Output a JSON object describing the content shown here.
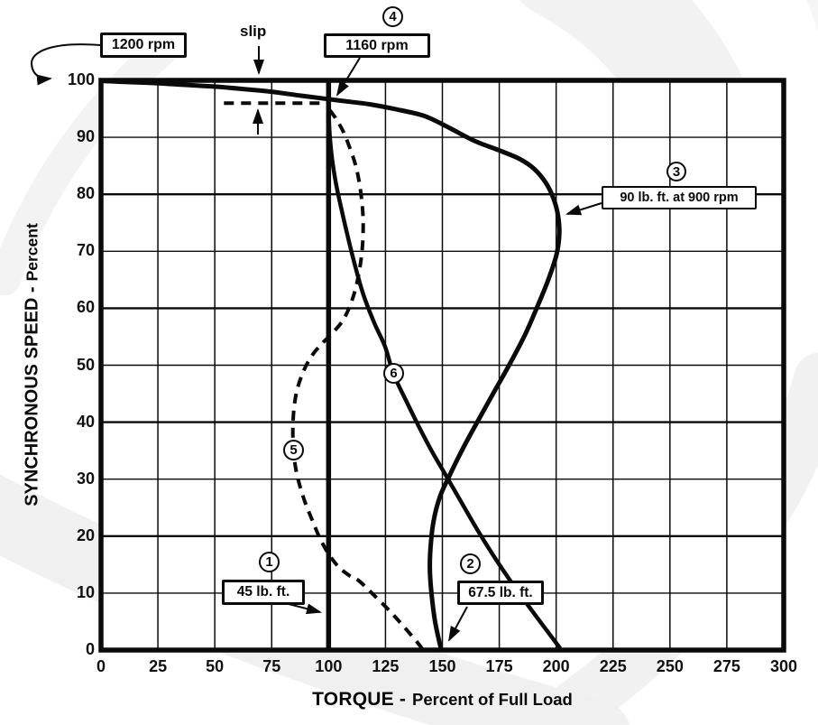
{
  "labels": {
    "x_title_main": "TORQUE -",
    "x_title_sub": "Percent of Full Load",
    "y_title_main": "SYNCHRONOUS SPEED -",
    "y_title_sub": "Percent",
    "slip": "slip",
    "rpm_1200": "1200 rpm",
    "rpm_1160": "1160 rpm",
    "breakdown": "90 lb. ft. at 900 rpm",
    "full_load": "45 lb. ft.",
    "starting": "67.5 lb. ft.",
    "n1": "1",
    "n2": "2",
    "n3": "3",
    "n4": "4",
    "n5": "5",
    "n6": "6"
  },
  "chart_data": {
    "type": "line",
    "title": "",
    "xlabel": "TORQUE - Percent of Full Load",
    "ylabel": "SYNCHRONOUS SPEED - Percent",
    "xlim": [
      0,
      300
    ],
    "ylim": [
      0,
      100
    ],
    "x_ticks": [
      0,
      25,
      50,
      75,
      100,
      125,
      150,
      175,
      200,
      225,
      250,
      275,
      300
    ],
    "y_ticks": [
      0,
      10,
      20,
      30,
      40,
      50,
      60,
      70,
      80,
      90,
      100
    ],
    "grid": true,
    "special_vertical_line_x": 100,
    "series": [
      {
        "name": "speed-torque-curve",
        "line_style": "solid",
        "points": [
          [
            149.5,
            0
          ],
          [
            146.8,
            5
          ],
          [
            145.2,
            10
          ],
          [
            144.5,
            14.5
          ],
          [
            145,
            19
          ],
          [
            146.3,
            23
          ],
          [
            149,
            27
          ],
          [
            153,
            30.5
          ],
          [
            158.9,
            35.3
          ],
          [
            166,
            40.5
          ],
          [
            173,
            45.5
          ],
          [
            180,
            50.5
          ],
          [
            186.5,
            55.5
          ],
          [
            192.5,
            61
          ],
          [
            197,
            65.5
          ],
          [
            200.2,
            69.5
          ],
          [
            201.4,
            73
          ],
          [
            200.8,
            76.3
          ],
          [
            198.8,
            79.3
          ],
          [
            195.5,
            82
          ],
          [
            190.5,
            84.4
          ],
          [
            184,
            86.2
          ],
          [
            175,
            87.7
          ],
          [
            164,
            89.4
          ],
          [
            150,
            92.3
          ],
          [
            141.7,
            93.8
          ],
          [
            130,
            94.9
          ],
          [
            118,
            95.8
          ],
          [
            108,
            96.3
          ],
          [
            100,
            96.7
          ],
          [
            88,
            97.3
          ],
          [
            75,
            98
          ],
          [
            62,
            98.5
          ],
          [
            50,
            98.9
          ],
          [
            37,
            99.2
          ],
          [
            25,
            99.5
          ],
          [
            12,
            99.7
          ],
          [
            0,
            99.9
          ]
        ]
      },
      {
        "name": "curve-6",
        "line_style": "solid",
        "points": [
          [
            100,
            94
          ],
          [
            100.6,
            90
          ],
          [
            101.6,
            86
          ],
          [
            103.2,
            82
          ],
          [
            105.3,
            78
          ],
          [
            108.2,
            73
          ],
          [
            111.3,
            68
          ],
          [
            115.2,
            62.5
          ],
          [
            120,
            57.5
          ],
          [
            124.8,
            53.3
          ],
          [
            128.5,
            48.5
          ],
          [
            133.8,
            44
          ],
          [
            139.7,
            39.2
          ],
          [
            145.8,
            34.6
          ],
          [
            152.5,
            30
          ],
          [
            159,
            25.5
          ],
          [
            166.3,
            20.5
          ],
          [
            174.2,
            15.5
          ],
          [
            182.8,
            10.5
          ],
          [
            192,
            5.5
          ],
          [
            201.8,
            0.3
          ]
        ]
      },
      {
        "name": "curve-5-dashed",
        "line_style": "dashed",
        "points": [
          [
            100.5,
            94.8
          ],
          [
            103,
            93.4
          ],
          [
            106.2,
            91.2
          ],
          [
            109.2,
            88.3
          ],
          [
            111.8,
            85.2
          ],
          [
            113.6,
            81.8
          ],
          [
            114.8,
            78
          ],
          [
            115.2,
            74.5
          ],
          [
            114.8,
            70.5
          ],
          [
            113.4,
            66.3
          ],
          [
            110.8,
            62
          ],
          [
            106.8,
            58.2
          ],
          [
            101.6,
            55.6
          ],
          [
            96.6,
            53.6
          ],
          [
            92.2,
            51.4
          ],
          [
            88.6,
            48.6
          ],
          [
            86,
            45.4
          ],
          [
            84.7,
            42
          ],
          [
            84.3,
            38.5
          ],
          [
            84.6,
            35
          ],
          [
            85.6,
            31.8
          ],
          [
            87.4,
            28.8
          ],
          [
            89.8,
            25.8
          ],
          [
            92.8,
            22.8
          ],
          [
            96,
            19.8
          ],
          [
            99.8,
            17
          ],
          [
            104.4,
            14.6
          ],
          [
            109.4,
            13
          ],
          [
            113.2,
            12.2
          ],
          [
            119,
            10
          ],
          [
            125.8,
            7.3
          ],
          [
            132,
            4.6
          ],
          [
            138.9,
            1.4
          ],
          [
            141.5,
            0
          ]
        ]
      },
      {
        "name": "slip-reference-line",
        "line_style": "dashed",
        "points": [
          [
            54,
            96
          ],
          [
            100,
            96
          ]
        ]
      }
    ],
    "annotations": [
      {
        "id": "1",
        "text": "45 lb. ft.",
        "points_to_torque": 100,
        "points_to_speed": 6
      },
      {
        "id": "2",
        "text": "67.5 lb. ft.",
        "points_to_torque": 152,
        "points_to_speed": 1
      },
      {
        "id": "3",
        "text": "90 lb. ft. at 900 rpm",
        "points_to_torque": 203,
        "points_to_speed": 76
      },
      {
        "id": "4",
        "text": "1160 rpm",
        "points_to_torque": 100,
        "points_to_speed": 96.7
      },
      {
        "id": "5",
        "text": "",
        "points_to_torque": 84,
        "points_to_speed": 35
      },
      {
        "id": "6",
        "text": "",
        "points_to_torque": 128,
        "points_to_speed": 48.5
      },
      {
        "text": "1200 rpm",
        "points_to": "y-axis value 100"
      },
      {
        "text": "slip",
        "points_to": "gap between synchronous speed (100%) and full-load speed"
      }
    ]
  }
}
